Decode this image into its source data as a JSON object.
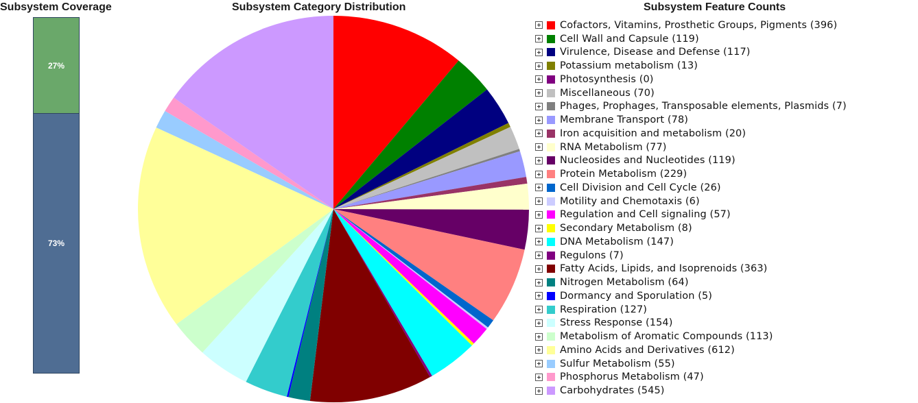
{
  "coverage": {
    "title": "Subsystem Coverage",
    "covered_label": "27%",
    "uncovered_label": "73%",
    "covered_fraction": 0.27,
    "colors": {
      "covered": "#6aa86a",
      "uncovered": "#4f6d93"
    }
  },
  "pie_title": "Subsystem Category Distribution",
  "legend_title": "Subsystem Feature Counts",
  "chart_data": {
    "type": "pie",
    "title": "Subsystem Category Distribution",
    "slices": [
      {
        "label": "Cofactors, Vitamins, Prosthetic Groups, Pigments (396)",
        "name": "Cofactors, Vitamins, Prosthetic Groups, Pigments",
        "value": 396,
        "color": "#ff0000"
      },
      {
        "label": "Cell Wall and Capsule (119)",
        "name": "Cell Wall and Capsule",
        "value": 119,
        "color": "#008000"
      },
      {
        "label": "Virulence, Disease and Defense (117)",
        "name": "Virulence, Disease and Defense",
        "value": 117,
        "color": "#000080"
      },
      {
        "label": "Potassium metabolism (13)",
        "name": "Potassium metabolism",
        "value": 13,
        "color": "#808000"
      },
      {
        "label": "Photosynthesis (0)",
        "name": "Photosynthesis",
        "value": 0,
        "color": "#800080"
      },
      {
        "label": "Miscellaneous (70)",
        "name": "Miscellaneous",
        "value": 70,
        "color": "#c0c0c0"
      },
      {
        "label": "Phages, Prophages, Transposable elements, Plasmids (7)",
        "name": "Phages, Prophages, Transposable elements, Plasmids",
        "value": 7,
        "color": "#808080"
      },
      {
        "label": "Membrane Transport (78)",
        "name": "Membrane Transport",
        "value": 78,
        "color": "#9999ff"
      },
      {
        "label": "Iron acquisition and metabolism (20)",
        "name": "Iron acquisition and metabolism",
        "value": 20,
        "color": "#993366"
      },
      {
        "label": "RNA Metabolism (77)",
        "name": "RNA Metabolism",
        "value": 77,
        "color": "#ffffcc"
      },
      {
        "label": "Nucleosides and Nucleotides (119)",
        "name": "Nucleosides and Nucleotides",
        "value": 119,
        "color": "#660066"
      },
      {
        "label": "Protein Metabolism (229)",
        "name": "Protein Metabolism",
        "value": 229,
        "color": "#ff8080"
      },
      {
        "label": "Cell Division and Cell Cycle (26)",
        "name": "Cell Division and Cell Cycle",
        "value": 26,
        "color": "#0066cc"
      },
      {
        "label": "Motility and Chemotaxis (6)",
        "name": "Motility and Chemotaxis",
        "value": 6,
        "color": "#ccccff"
      },
      {
        "label": "Regulation and Cell signaling (57)",
        "name": "Regulation and Cell signaling",
        "value": 57,
        "color": "#ff00ff"
      },
      {
        "label": "Secondary Metabolism (8)",
        "name": "Secondary Metabolism",
        "value": 8,
        "color": "#ffff00"
      },
      {
        "label": "DNA Metabolism (147)",
        "name": "DNA Metabolism",
        "value": 147,
        "color": "#00ffff"
      },
      {
        "label": "Regulons (7)",
        "name": "Regulons",
        "value": 7,
        "color": "#800080"
      },
      {
        "label": "Fatty Acids, Lipids, and Isoprenoids (363)",
        "name": "Fatty Acids, Lipids, and Isoprenoids",
        "value": 363,
        "color": "#800000"
      },
      {
        "label": "Nitrogen Metabolism (64)",
        "name": "Nitrogen Metabolism",
        "value": 64,
        "color": "#008080"
      },
      {
        "label": "Dormancy and Sporulation (5)",
        "name": "Dormancy and Sporulation",
        "value": 5,
        "color": "#0000ff"
      },
      {
        "label": "Respiration (127)",
        "name": "Respiration",
        "value": 127,
        "color": "#33cccc"
      },
      {
        "label": "Stress Response (154)",
        "name": "Stress Response",
        "value": 154,
        "color": "#ccffff"
      },
      {
        "label": "Metabolism of Aromatic Compounds (113)",
        "name": "Metabolism of Aromatic Compounds",
        "value": 113,
        "color": "#ccffcc"
      },
      {
        "label": "Amino Acids and Derivatives (612)",
        "name": "Amino Acids and Derivatives",
        "value": 612,
        "color": "#ffff99"
      },
      {
        "label": "Sulfur Metabolism (55)",
        "name": "Sulfur Metabolism",
        "value": 55,
        "color": "#99ccff"
      },
      {
        "label": "Phosphorus Metabolism (47)",
        "name": "Phosphorus Metabolism",
        "value": 47,
        "color": "#ff99cc"
      },
      {
        "label": "Carbohydrates (545)",
        "name": "Carbohydrates",
        "value": 545,
        "color": "#cc99ff"
      }
    ],
    "start_angle": "top",
    "direction": "clockwise",
    "legend_placement": "right"
  }
}
